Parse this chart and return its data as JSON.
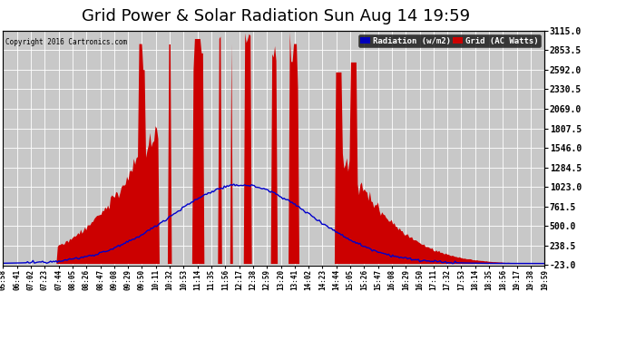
{
  "title": "Grid Power & Solar Radiation Sun Aug 14 19:59",
  "copyright": "Copyright 2016 Cartronics.com",
  "legend_radiation": "Radiation (w/m2)",
  "legend_grid": "Grid (AC Watts)",
  "legend_radiation_bg": "#0000bb",
  "legend_grid_bg": "#cc0000",
  "y_right_ticks": [
    3115.0,
    2853.5,
    2592.0,
    2330.5,
    2069.0,
    1807.5,
    1546.0,
    1284.5,
    1023.0,
    761.5,
    500.0,
    238.5,
    -23.0
  ],
  "y_max": 3115.0,
  "y_min": -23.0,
  "background_color": "#ffffff",
  "plot_bg_color": "#c8c8c8",
  "grid_color": "#ffffff",
  "radiation_color": "#0000cc",
  "grid_power_color": "#cc0000",
  "title_fontsize": 13,
  "x_labels": [
    "05:58",
    "06:41",
    "07:02",
    "07:23",
    "07:44",
    "08:05",
    "08:26",
    "08:47",
    "09:08",
    "09:29",
    "09:50",
    "10:11",
    "10:32",
    "10:53",
    "11:14",
    "11:35",
    "11:56",
    "12:17",
    "12:38",
    "12:59",
    "13:20",
    "13:41",
    "14:02",
    "14:23",
    "14:44",
    "15:05",
    "15:26",
    "15:47",
    "16:08",
    "16:29",
    "16:50",
    "17:11",
    "17:32",
    "17:53",
    "18:14",
    "18:35",
    "18:56",
    "19:17",
    "19:38",
    "19:59"
  ]
}
